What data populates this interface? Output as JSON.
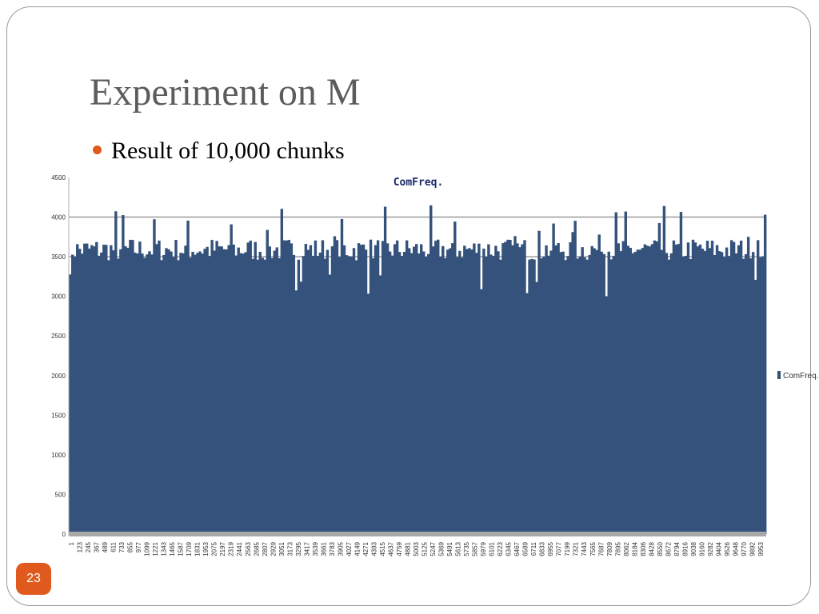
{
  "slide": {
    "title": "Experiment on M",
    "bullet": "Result of 10,000 chunks",
    "page_number": "23"
  },
  "colors": {
    "bar": "#34527b",
    "accent": "#e05a1e",
    "title": "#5c5c5c"
  },
  "chart_data": {
    "type": "bar",
    "title": "ComFreq.",
    "legend": {
      "entries": [
        "ComFreq."
      ],
      "position": "right"
    },
    "ylim": [
      0,
      4500
    ],
    "yticks": [
      "0",
      "500",
      "1000",
      "1500",
      "2000",
      "2500",
      "3000",
      "3500",
      "4000",
      "4500"
    ],
    "grid": true,
    "x_range": [
      1,
      10000
    ],
    "xtick_labels": [
      "1",
      "123",
      "245",
      "367",
      "489",
      "611",
      "733",
      "855",
      "977",
      "1099",
      "1221",
      "1343",
      "1465",
      "1587",
      "1709",
      "1831",
      "1953",
      "2075",
      "2197",
      "2319",
      "2441",
      "2563",
      "2685",
      "2807",
      "2929",
      "3051",
      "3173",
      "3295",
      "3417",
      "3539",
      "3661",
      "3783",
      "3905",
      "4027",
      "4149",
      "4271",
      "4393",
      "4515",
      "4637",
      "4759",
      "4881",
      "5003",
      "5125",
      "5247",
      "5369",
      "5491",
      "5613",
      "5735",
      "5857",
      "5979",
      "6101",
      "6223",
      "6345",
      "6467",
      "6589",
      "6711",
      "6833",
      "6955",
      "7077",
      "7199",
      "7321",
      "7443",
      "7565",
      "7687",
      "7809",
      "7895",
      "8062",
      "8184",
      "8306",
      "8428",
      "8550",
      "8672",
      "8794",
      "8916",
      "9038",
      "9160",
      "9282",
      "9404",
      "9526",
      "9648",
      "9770",
      "9892",
      "9953"
    ],
    "series": [
      {
        "name": "ComFreq.",
        "typical_value": 3500,
        "min_value": 3000,
        "max_value": 4150
      }
    ]
  }
}
